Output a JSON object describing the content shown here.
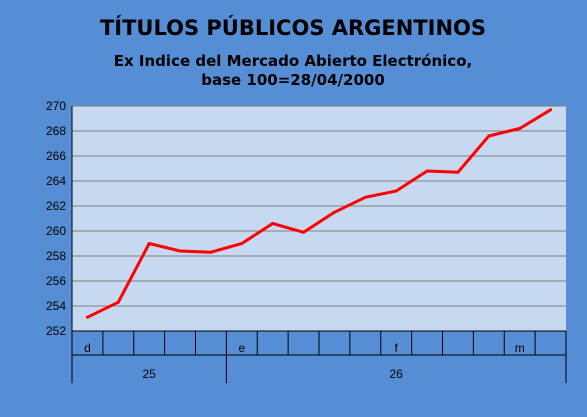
{
  "chart_data": {
    "type": "line",
    "title": "TÍTULOS PÚBLICOS ARGENTINOS",
    "subtitle_lines": [
      "Ex Indice del Mercado Abierto Electrónico,",
      "base 100=28/04/2000"
    ],
    "xlabel": "",
    "ylabel": "",
    "ylim": [
      252,
      270
    ],
    "y_ticks": [
      252,
      254,
      256,
      258,
      260,
      262,
      264,
      266,
      268,
      270
    ],
    "grid": true,
    "legend": "none",
    "colors": {
      "background": "#558ED5",
      "plot_area": "#C6D9F1",
      "series_line": "#FF0000",
      "gridline": "#808080"
    },
    "month_labels": [
      {
        "label": "d",
        "index": 0
      },
      {
        "label": "e",
        "index": 5
      },
      {
        "label": "f",
        "index": 10
      },
      {
        "label": "m",
        "index": 14
      }
    ],
    "year_labels": [
      {
        "label": "25",
        "start": 0,
        "end": 5
      },
      {
        "label": "26",
        "start": 5,
        "end": 16
      }
    ],
    "series": [
      {
        "values": [
          253.1,
          254.3,
          259.0,
          258.4,
          258.3,
          259.0,
          260.6,
          259.9,
          261.5,
          262.7,
          263.2,
          264.8,
          264.7,
          267.6,
          268.2,
          269.7
        ]
      }
    ]
  }
}
